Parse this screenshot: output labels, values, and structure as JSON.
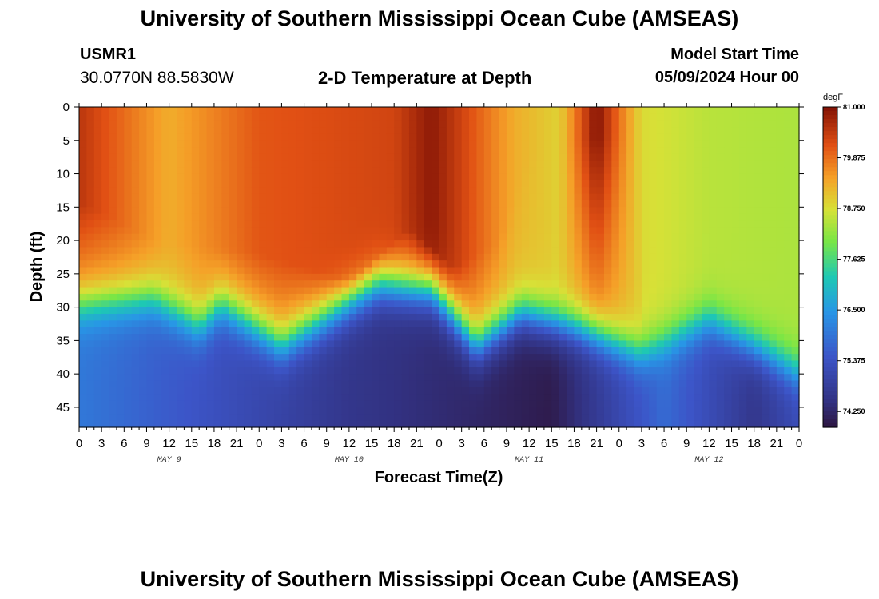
{
  "header": {
    "title_top": "University of Southern Mississippi Ocean Cube (AMSEAS)",
    "title_bottom": "University of Southern Mississippi Ocean Cube (AMSEAS)",
    "station_id": "USMR1",
    "coords": "30.0770N  88.5830W",
    "plot_subtitle": "2-D Temperature at Depth",
    "model_start_label": "Model Start Time",
    "model_start_value": "05/09/2024 Hour 00"
  },
  "chart_data": {
    "type": "heatmap",
    "title": "2-D Temperature at Depth",
    "xlabel": "Forecast Time(Z)",
    "ylabel": "Depth (ft)",
    "units": "degF",
    "x_hours": [
      0,
      96
    ],
    "ylim": [
      0,
      48
    ],
    "x_tick_labels": [
      "0",
      "3",
      "6",
      "9",
      "12",
      "15",
      "18",
      "21",
      "0",
      "3",
      "6",
      "9",
      "12",
      "15",
      "18",
      "21",
      "0",
      "3",
      "6",
      "9",
      "12",
      "15",
      "18",
      "21",
      "0",
      "3",
      "6",
      "9",
      "12",
      "15",
      "18",
      "21",
      "0"
    ],
    "y_ticks": [
      0,
      5,
      10,
      15,
      20,
      25,
      30,
      35,
      40,
      45
    ],
    "day_labels": [
      {
        "label": "MAY 9",
        "hour": 12
      },
      {
        "label": "MAY 10",
        "hour": 36
      },
      {
        "label": "MAY 11",
        "hour": 60
      },
      {
        "label": "MAY 12",
        "hour": 84
      }
    ],
    "colorbar": {
      "min": 73.9,
      "max": 81.0,
      "tick_values": [
        81.0,
        79.875,
        78.75,
        77.625,
        76.5,
        75.375,
        74.25
      ],
      "tick_labels": [
        "81.000",
        "79.875",
        "78.750",
        "77.625",
        "76.500",
        "75.375",
        "74.250"
      ]
    },
    "thermocline_depth_ft": [
      {
        "hour": 0,
        "depth": 30
      },
      {
        "hour": 10,
        "depth": 29
      },
      {
        "hour": 16,
        "depth": 33
      },
      {
        "hour": 19,
        "depth": 30
      },
      {
        "hour": 27,
        "depth": 36
      },
      {
        "hour": 40,
        "depth": 27
      },
      {
        "hour": 47,
        "depth": 28
      },
      {
        "hour": 53,
        "depth": 36
      },
      {
        "hour": 59,
        "depth": 31
      },
      {
        "hour": 66,
        "depth": 33
      },
      {
        "hour": 75,
        "depth": 37
      },
      {
        "hour": 84,
        "depth": 32
      },
      {
        "hour": 90,
        "depth": 36
      },
      {
        "hour": 96,
        "depth": 40
      }
    ],
    "surface_temperature_degF": [
      {
        "hour": 0,
        "value": 80.5
      },
      {
        "hour": 12,
        "value": 79.3
      },
      {
        "hour": 24,
        "value": 80.1
      },
      {
        "hour": 42,
        "value": 80.3
      },
      {
        "hour": 47,
        "value": 80.9
      },
      {
        "hour": 58,
        "value": 79.3
      },
      {
        "hour": 64,
        "value": 78.9
      },
      {
        "hour": 69,
        "value": 81.0
      },
      {
        "hour": 75,
        "value": 78.8
      },
      {
        "hour": 84,
        "value": 78.5
      },
      {
        "hour": 96,
        "value": 78.4
      }
    ],
    "warm_layer_bottom_ft": [
      {
        "hour": 0,
        "depth": 14
      },
      {
        "hour": 10,
        "depth": 20
      },
      {
        "hour": 24,
        "depth": 22
      },
      {
        "hour": 36,
        "depth": 26
      },
      {
        "hour": 44,
        "depth": 18
      },
      {
        "hour": 50,
        "depth": 24
      },
      {
        "hour": 56,
        "depth": 20
      },
      {
        "hour": 60,
        "depth": 6
      },
      {
        "hour": 72,
        "depth": 4
      },
      {
        "hour": 96,
        "depth": 0
      }
    ],
    "deep_temperature_degF": [
      {
        "hour": 0,
        "value": 76.0
      },
      {
        "hour": 16,
        "value": 75.4
      },
      {
        "hour": 36,
        "value": 74.6
      },
      {
        "hour": 63,
        "value": 74.0
      },
      {
        "hour": 78,
        "value": 75.8
      },
      {
        "hour": 90,
        "value": 74.6
      },
      {
        "hour": 96,
        "value": 75.2
      }
    ]
  }
}
